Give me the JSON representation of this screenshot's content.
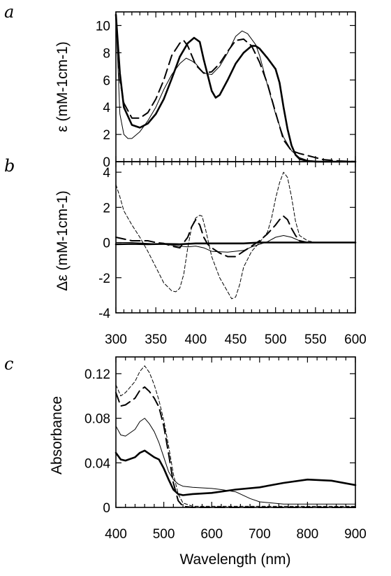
{
  "chart_data": [
    {
      "panel": "a",
      "type": "line",
      "xlabel": "",
      "ylabel": "ε (mM-1cm-1)",
      "xlim": [
        300,
        600
      ],
      "ylim": [
        0,
        11
      ],
      "yticks": [
        0,
        2,
        4,
        6,
        8,
        10
      ],
      "tick_labels_y": [
        "0",
        "2",
        "4",
        "6",
        "8",
        "10"
      ],
      "series": [
        {
          "style": "thick-solid",
          "x": [
            300,
            305,
            310,
            320,
            330,
            340,
            350,
            360,
            370,
            380,
            390,
            398,
            405,
            410,
            420,
            425,
            430,
            440,
            450,
            460,
            470,
            475,
            480,
            490,
            500,
            505,
            510,
            515,
            520,
            525,
            530,
            540,
            550,
            560,
            580,
            600
          ],
          "y": [
            10.8,
            6.5,
            4.0,
            2.7,
            2.5,
            2.8,
            3.5,
            4.6,
            6.1,
            7.7,
            8.7,
            9.1,
            8.8,
            7.5,
            5.2,
            4.7,
            4.9,
            6.0,
            7.2,
            8.0,
            8.5,
            8.5,
            8.3,
            7.6,
            6.8,
            5.8,
            4.0,
            2.4,
            1.2,
            0.5,
            0.2,
            0.05,
            0.0,
            0.0,
            0.0,
            0.0
          ]
        },
        {
          "style": "dashed",
          "x": [
            300,
            305,
            310,
            320,
            330,
            340,
            350,
            360,
            370,
            380,
            385,
            390,
            400,
            410,
            420,
            430,
            440,
            450,
            460,
            470,
            480,
            490,
            500,
            510,
            520,
            530,
            540,
            550,
            560,
            580,
            600
          ],
          "y": [
            10.8,
            6.0,
            4.3,
            3.2,
            3.2,
            3.6,
            4.6,
            6.0,
            7.8,
            8.7,
            8.9,
            8.5,
            7.1,
            6.5,
            6.6,
            7.2,
            8.1,
            8.9,
            9.0,
            8.5,
            7.3,
            5.7,
            3.6,
            1.6,
            0.8,
            0.6,
            0.45,
            0.3,
            0.15,
            0.05,
            0.0
          ]
        },
        {
          "style": "thin-solid",
          "x": [
            300,
            305,
            310,
            315,
            320,
            330,
            340,
            350,
            360,
            370,
            380,
            388,
            395,
            400,
            410,
            420,
            430,
            440,
            450,
            458,
            465,
            475,
            480,
            490,
            500,
            510,
            520,
            530,
            540,
            560,
            580,
            600
          ],
          "y": [
            10.8,
            3.5,
            2.0,
            1.7,
            1.7,
            2.2,
            3.0,
            4.0,
            5.3,
            6.4,
            7.2,
            7.6,
            7.4,
            7.2,
            6.5,
            6.4,
            7.0,
            8.0,
            9.2,
            9.6,
            9.4,
            8.6,
            7.8,
            5.6,
            3.5,
            1.8,
            0.8,
            0.3,
            0.1,
            0.0,
            0.0,
            0.0
          ]
        }
      ]
    },
    {
      "panel": "b",
      "type": "line",
      "xlabel": "",
      "ylabel": "Δε (mM-1cm-1)",
      "xlim": [
        300,
        600
      ],
      "ylim": [
        -4,
        4.6
      ],
      "xticks": [
        300,
        350,
        400,
        450,
        500,
        550,
        600
      ],
      "tick_labels_x": [
        "300",
        "350",
        "400",
        "450",
        "500",
        "550",
        "600"
      ],
      "yticks": [
        -4,
        -2,
        0,
        2,
        4
      ],
      "tick_labels_y": [
        "-4",
        "-2",
        "0",
        "2",
        "4"
      ],
      "series": [
        {
          "style": "thick-solid",
          "x": [
            300,
            320,
            340,
            360,
            380,
            400,
            420,
            440,
            460,
            480,
            500,
            520,
            540,
            560,
            580,
            600
          ],
          "y": [
            -0.1,
            -0.08,
            -0.1,
            -0.08,
            -0.1,
            -0.05,
            -0.05,
            -0.05,
            -0.05,
            0.0,
            0.0,
            0.0,
            0.0,
            0.0,
            0.0,
            0.0
          ]
        },
        {
          "style": "dashed",
          "x": [
            300,
            310,
            320,
            330,
            340,
            350,
            360,
            370,
            380,
            390,
            395,
            400,
            405,
            410,
            415,
            420,
            430,
            440,
            450,
            460,
            470,
            480,
            490,
            500,
            505,
            510,
            515,
            520,
            525,
            530,
            540,
            550,
            600
          ],
          "y": [
            0.3,
            0.2,
            0.1,
            0.1,
            0.1,
            0.0,
            -0.05,
            -0.2,
            -0.3,
            0.3,
            0.9,
            1.3,
            1.0,
            0.3,
            -0.1,
            -0.3,
            -0.6,
            -0.8,
            -0.8,
            -0.5,
            -0.2,
            0.1,
            0.5,
            1.0,
            1.3,
            1.5,
            1.3,
            0.8,
            0.4,
            0.1,
            0.0,
            0.0,
            0.0
          ]
        },
        {
          "style": "thin-solid",
          "x": [
            300,
            320,
            340,
            360,
            380,
            390,
            400,
            410,
            420,
            440,
            460,
            470,
            480,
            490,
            500,
            510,
            520,
            530,
            540,
            560,
            580,
            600
          ],
          "y": [
            0.0,
            0.0,
            -0.05,
            -0.1,
            -0.2,
            -0.25,
            -0.2,
            -0.3,
            -0.5,
            -0.55,
            -0.45,
            -0.25,
            -0.1,
            0.05,
            0.3,
            0.4,
            0.3,
            0.1,
            0.0,
            0.0,
            0.0,
            0.0
          ]
        },
        {
          "style": "thin-dashed",
          "x": [
            300,
            305,
            310,
            320,
            330,
            340,
            350,
            360,
            370,
            375,
            380,
            385,
            390,
            395,
            400,
            405,
            408,
            412,
            420,
            430,
            440,
            445,
            450,
            455,
            460,
            470,
            480,
            490,
            495,
            500,
            505,
            510,
            515,
            520,
            525,
            530,
            540,
            550,
            600
          ],
          "y": [
            3.3,
            2.6,
            1.8,
            1.0,
            0.3,
            -0.5,
            -1.4,
            -2.3,
            -2.75,
            -2.8,
            -2.6,
            -1.8,
            -0.3,
            0.9,
            1.4,
            1.55,
            1.5,
            0.8,
            -0.8,
            -2.0,
            -2.8,
            -3.2,
            -3.1,
            -2.4,
            -1.4,
            -0.5,
            0.0,
            0.6,
            1.4,
            2.5,
            3.4,
            4.0,
            3.7,
            2.6,
            1.2,
            0.4,
            0.1,
            0.0,
            0.0
          ]
        }
      ]
    },
    {
      "panel": "c",
      "type": "line",
      "xlabel": "Wavelength (nm)",
      "ylabel": "Absorbance",
      "xlim": [
        400,
        900
      ],
      "ylim": [
        0,
        0.135
      ],
      "xticks": [
        400,
        500,
        600,
        700,
        800,
        900
      ],
      "tick_labels_x": [
        "400",
        "500",
        "600",
        "700",
        "800",
        "900"
      ],
      "yticks": [
        0,
        0.04,
        0.08,
        0.12
      ],
      "tick_labels_y": [
        "0",
        "0.04",
        "0.08",
        "0.12"
      ],
      "series": [
        {
          "style": "thick-solid",
          "x": [
            400,
            410,
            420,
            440,
            450,
            460,
            470,
            480,
            490,
            500,
            510,
            520,
            530,
            540,
            560,
            600,
            650,
            700,
            750,
            800,
            850,
            900
          ],
          "y": [
            0.049,
            0.043,
            0.042,
            0.045,
            0.049,
            0.051,
            0.048,
            0.045,
            0.043,
            0.035,
            0.025,
            0.016,
            0.012,
            0.011,
            0.012,
            0.013,
            0.016,
            0.018,
            0.022,
            0.025,
            0.024,
            0.02
          ]
        },
        {
          "style": "thin-dashed",
          "x": [
            400,
            410,
            420,
            440,
            450,
            460,
            470,
            480,
            490,
            500,
            510,
            520,
            530,
            540,
            560,
            600,
            700,
            800,
            900
          ],
          "y": [
            0.11,
            0.1,
            0.103,
            0.113,
            0.122,
            0.127,
            0.121,
            0.11,
            0.096,
            0.078,
            0.055,
            0.03,
            0.012,
            0.004,
            0.001,
            0.001,
            0.001,
            0.001,
            0.001
          ]
        },
        {
          "style": "dashed",
          "x": [
            400,
            410,
            420,
            440,
            450,
            460,
            470,
            480,
            490,
            500,
            510,
            520,
            530,
            540,
            560,
            600,
            700,
            800,
            900
          ],
          "y": [
            0.103,
            0.091,
            0.092,
            0.098,
            0.105,
            0.108,
            0.104,
            0.098,
            0.09,
            0.073,
            0.048,
            0.022,
            0.006,
            0.001,
            0.0,
            0.0,
            0.0,
            0.0,
            0.0
          ]
        },
        {
          "style": "thin-solid",
          "x": [
            400,
            410,
            420,
            440,
            450,
            460,
            470,
            480,
            490,
            500,
            510,
            520,
            530,
            540,
            560,
            600,
            620,
            650,
            680,
            700,
            750,
            800,
            900
          ],
          "y": [
            0.073,
            0.065,
            0.064,
            0.07,
            0.077,
            0.08,
            0.075,
            0.068,
            0.058,
            0.045,
            0.032,
            0.025,
            0.021,
            0.019,
            0.018,
            0.017,
            0.016,
            0.014,
            0.008,
            0.005,
            0.003,
            0.003,
            0.003
          ]
        }
      ]
    }
  ]
}
